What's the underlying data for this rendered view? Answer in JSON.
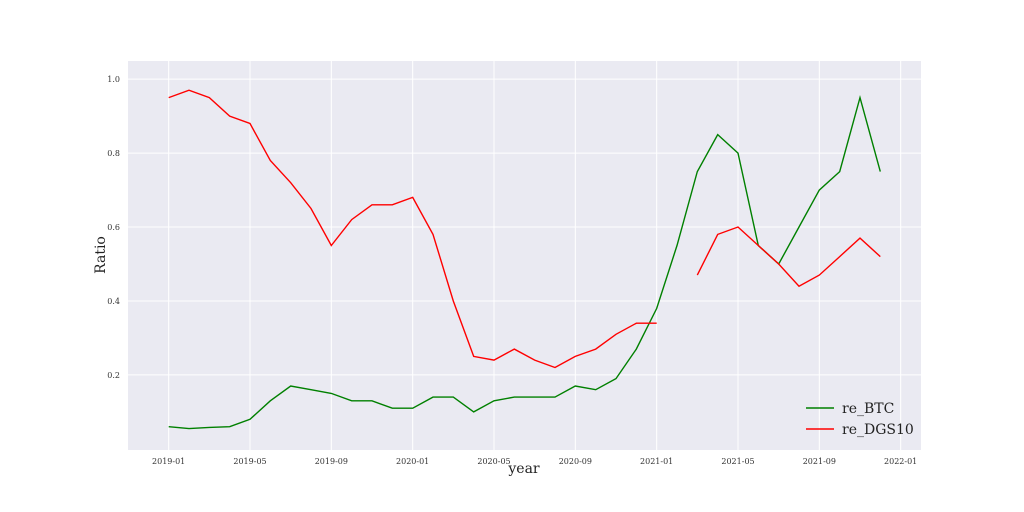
{
  "chart_data": {
    "type": "line",
    "x_label": "year",
    "y_label": "Ratio",
    "x": [
      "2019-01",
      "2019-02",
      "2019-03",
      "2019-04",
      "2019-05",
      "2019-06",
      "2019-07",
      "2019-08",
      "2019-09",
      "2019-10",
      "2019-11",
      "2019-12",
      "2020-01",
      "2020-02",
      "2020-03",
      "2020-04",
      "2020-05",
      "2020-06",
      "2020-07",
      "2020-08",
      "2020-09",
      "2020-10",
      "2020-11",
      "2020-12",
      "2021-01",
      "2021-02",
      "2021-03",
      "2021-04",
      "2021-05",
      "2021-06",
      "2021-07",
      "2021-08",
      "2021-09",
      "2021-10",
      "2021-11",
      "2021-12"
    ],
    "series": [
      {
        "name": "re_BTC",
        "color": "#008000",
        "values": [
          0.06,
          0.055,
          0.058,
          0.06,
          0.08,
          0.13,
          0.17,
          0.16,
          0.15,
          0.13,
          0.13,
          0.11,
          0.11,
          0.14,
          0.14,
          0.1,
          0.13,
          0.14,
          0.14,
          0.14,
          0.17,
          0.16,
          0.19,
          0.27,
          0.38,
          0.55,
          0.75,
          0.85,
          0.8,
          0.55,
          0.5,
          0.6,
          0.7,
          0.75,
          0.95,
          0.75
        ]
      },
      {
        "name": "re_DGS10",
        "color": "#ff0000",
        "values": [
          0.95,
          0.97,
          0.95,
          0.9,
          0.88,
          0.78,
          0.72,
          0.65,
          0.55,
          0.62,
          0.66,
          0.66,
          0.68,
          0.58,
          0.4,
          0.25,
          0.24,
          0.27,
          0.24,
          0.22,
          0.25,
          0.27,
          0.31,
          0.34,
          0.34,
          null,
          0.47,
          0.58,
          0.6,
          0.55,
          0.5,
          0.44,
          0.47,
          0.52,
          0.57,
          0.52
        ]
      }
    ],
    "xlim": [
      "2018-11",
      "2022-02"
    ],
    "xticks": [
      "2019-01",
      "2019-05",
      "2019-09",
      "2020-01",
      "2020-05",
      "2020-09",
      "2021-01",
      "2021-05",
      "2021-09",
      "2022-01"
    ],
    "ylim": [
      -0.003,
      1.049
    ],
    "yticks": [
      0.2,
      0.4,
      0.6,
      0.8,
      {
        "value": 1,
        "label": "1.0"
      }
    ],
    "grid": true,
    "legend": "lower right"
  }
}
